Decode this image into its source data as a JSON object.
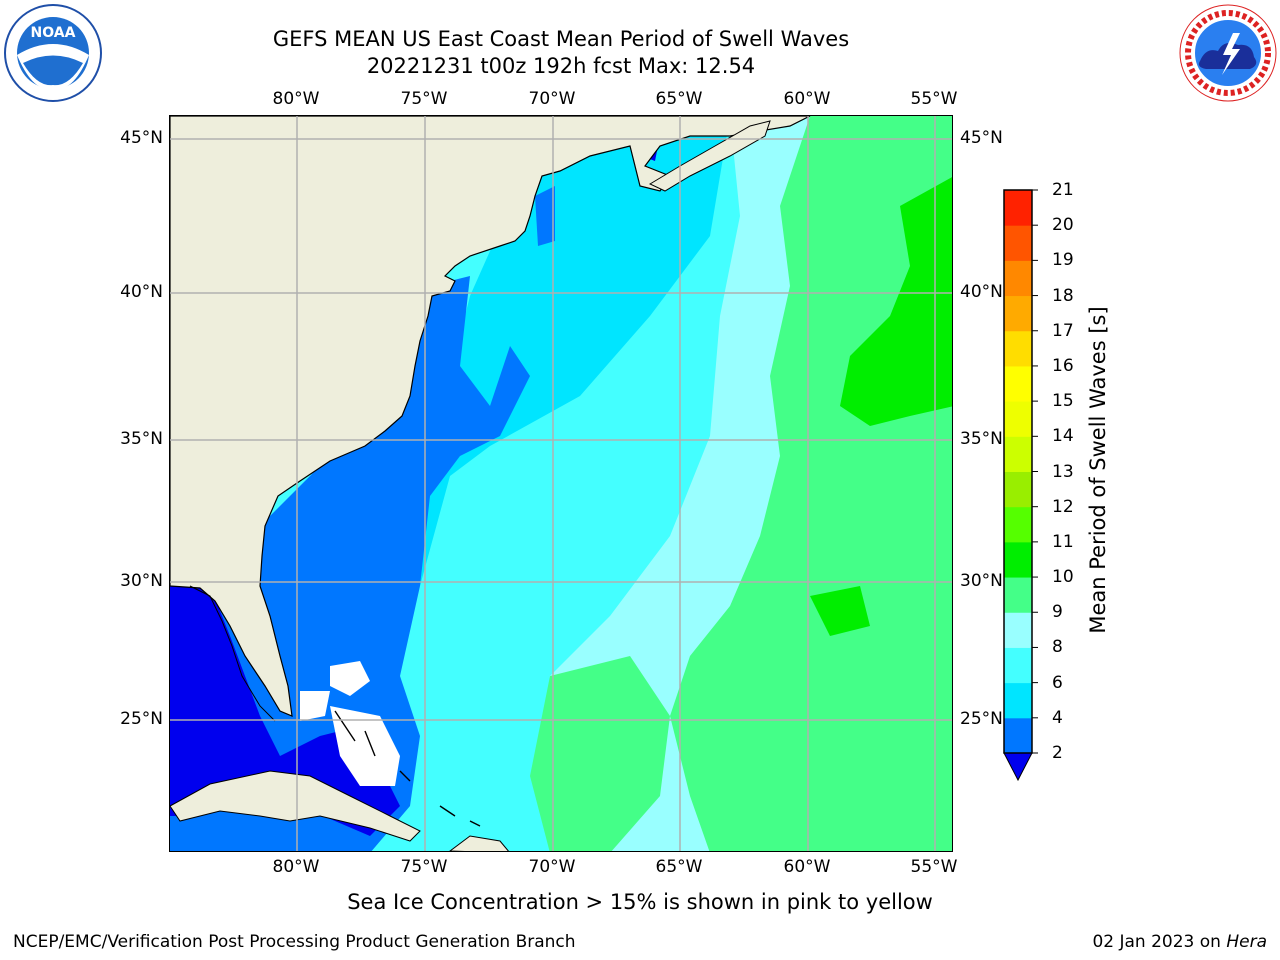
{
  "title": {
    "line1": "GEFS MEAN US East Coast Mean Period of Swell Waves",
    "line2": "20221231 t00z 192h fcst   Max: 12.54"
  },
  "map": {
    "lon_ticks": [
      "80°W",
      "75°W",
      "70°W",
      "65°W",
      "60°W",
      "55°W"
    ],
    "lat_ticks": [
      "45°N",
      "40°N",
      "35°N",
      "30°N",
      "25°N"
    ],
    "land_color": "#eeeedc",
    "grid_color": "#b0b0b0"
  },
  "colorbar": {
    "title": "Mean Period of Swell Waves [s]",
    "labels": [
      "2",
      "4",
      "6",
      "8",
      "9",
      "10",
      "11",
      "12",
      "13",
      "14",
      "15",
      "16",
      "17",
      "18",
      "19",
      "20",
      "21"
    ],
    "colors": [
      "#0077ff",
      "#00e5ff",
      "#44ffff",
      "#99ffff",
      "#44ff88",
      "#00ee00",
      "#55ff00",
      "#99ee00",
      "#ccff00",
      "#eeff00",
      "#ffff00",
      "#ffdd00",
      "#ffaa00",
      "#ff8800",
      "#ff5500",
      "#ff2200"
    ],
    "under_color": "#0000ee"
  },
  "footnote": "Sea Ice Concentration > 15% is shown in pink to yellow",
  "credit_left": "NCEP/EMC/Verification Post Processing Product Generation Branch",
  "credit_right_date": "02 Jan 2023 on",
  "credit_right_host": "Hera",
  "logos": {
    "noaa": {
      "icon": "noaa-logo",
      "text": "NOAA"
    },
    "nws": {
      "icon": "nws-logo"
    }
  }
}
